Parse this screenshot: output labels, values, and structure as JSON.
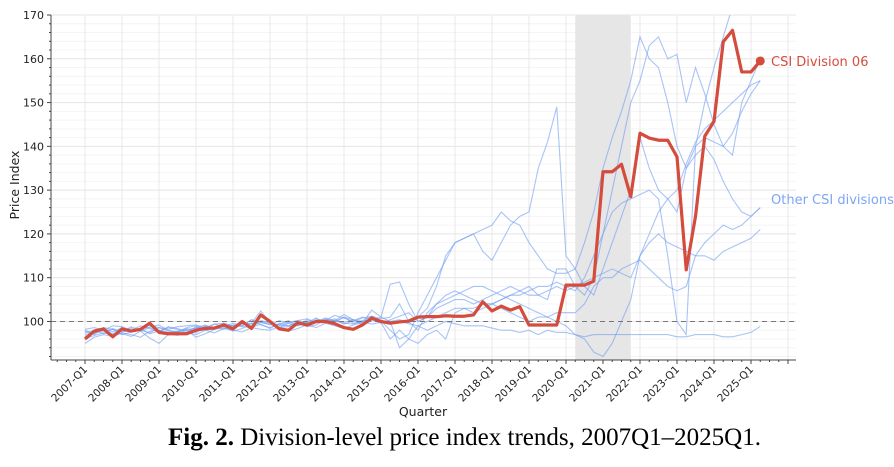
{
  "caption": {
    "label": "Fig. 2.",
    "text": " Division-level price index trends, 2007Q1–2025Q1."
  },
  "chart_data": {
    "type": "line",
    "title": "",
    "xlabel": "Quarter",
    "ylabel": "Price Index",
    "x_first": "2007-Q1",
    "x_last": "2025-Q2",
    "x_tick_labels": [
      "2007-Q1",
      "2008-Q1",
      "2009-Q1",
      "2010-Q1",
      "2011-Q1",
      "2012-Q1",
      "2013-Q1",
      "2014-Q1",
      "2015-Q1",
      "2016-Q1",
      "2017-Q1",
      "2018-Q1",
      "2019-Q1",
      "2020-Q1",
      "2021-Q1",
      "2022-Q1",
      "2023-Q1",
      "2024-Q1",
      "2025-Q1"
    ],
    "y_ticks": [
      100,
      110,
      120,
      130,
      140,
      150,
      160,
      170
    ],
    "ylim": [
      91.2,
      170
    ],
    "grid": true,
    "reference_line": {
      "y": 100,
      "style": "dashed"
    },
    "shaded_region": {
      "from": "2020-Q2",
      "to": "2021-Q4",
      "color": "#e6e6e6"
    },
    "colors": {
      "highlight": "#d44c3c",
      "others": "#6f9cf2",
      "others_label": "#7ea6f2"
    },
    "highlight": {
      "name": "CSI Division 06",
      "values": [
        96.0,
        97.8,
        98.3,
        96.5,
        98.3,
        97.8,
        98.2,
        99.6,
        97.5,
        97.2,
        97.2,
        97.2,
        98.0,
        98.4,
        98.5,
        99.2,
        98.3,
        100.0,
        98.4,
        101.5,
        100.0,
        98.3,
        98.0,
        99.7,
        99.2,
        100.0,
        100.0,
        99.5,
        98.6,
        98.2,
        99.2,
        100.8,
        100.0,
        99.6,
        99.9,
        100.1,
        101.0,
        101.1,
        101.1,
        101.3,
        101.2,
        101.2,
        101.5,
        104.5,
        102.4,
        103.5,
        102.6,
        103.4,
        99.2,
        99.2,
        99.2,
        99.2,
        108.3,
        108.3,
        108.3,
        109.2,
        134.2,
        134.2,
        135.9,
        128.5,
        143.0,
        141.9,
        141.4,
        141.4,
        137.6,
        111.8,
        124.0,
        142.3,
        145.7,
        163.9,
        166.5,
        157.0,
        157.0,
        159.5
      ]
    },
    "others": {
      "name": "Other CSI divisions",
      "lines": [
        [
          97.0,
          97.6,
          98.0,
          97.2,
          98.1,
          98.5,
          97.8,
          98.6,
          98.0,
          97.5,
          97.8,
          98.2,
          98.4,
          98.9,
          98.7,
          99.2,
          99.0,
          99.6,
          99.4,
          100.2,
          99.8,
          99.1,
          99.0,
          99.6,
          99.8,
          100.2,
          100.4,
          100.1,
          99.6,
          99.4,
          100.0,
          100.6,
          100.1,
          98.0,
          96.0,
          97.0,
          102,
          106,
          110,
          114,
          118,
          119,
          120,
          121,
          122,
          125,
          123,
          122,
          118,
          115,
          112,
          111,
          111,
          112,
          118,
          125,
          135,
          142,
          148,
          155,
          165,
          160,
          158,
          150,
          140,
          135,
          140,
          150,
          158,
          165,
          172,
          175,
          172,
          178
        ],
        [
          98.0,
          97.2,
          98.6,
          98.2,
          97.6,
          98.0,
          99.0,
          98.4,
          97.6,
          98.8,
          98.4,
          97.8,
          98.6,
          99.2,
          98.2,
          99.6,
          98.8,
          99.0,
          100.4,
          99.2,
          98.6,
          99.4,
          100.2,
          99.0,
          99.8,
          100.8,
          99.6,
          100.2,
          101.6,
          100.4,
          99.2,
          100.2,
          101.0,
          100.0,
          100.4,
          99.8,
          101,
          103,
          108,
          115,
          118,
          119,
          120,
          116,
          114,
          118,
          122,
          124,
          125,
          135,
          141,
          149,
          115,
          112,
          108,
          106,
          112,
          118,
          124,
          130,
          142,
          135,
          130,
          128,
          125,
          135,
          138,
          140,
          137,
          132,
          128,
          125,
          124,
          126
        ],
        [
          96.0,
          96.8,
          97.4,
          97.0,
          97.2,
          96.6,
          97.8,
          96.2,
          95.0,
          97.0,
          97.6,
          98.0,
          96.4,
          97.2,
          98.2,
          98.6,
          97.8,
          98.4,
          99.6,
          102.4,
          99.8,
          98.6,
          98.8,
          99.4,
          99.0,
          100.6,
          100.0,
          99.8,
          101.0,
          100.4,
          99.6,
          102.6,
          101.0,
          108.5,
          109.0,
          104.0,
          100,
          101,
          104,
          106,
          107,
          106,
          105,
          104,
          104,
          105,
          106,
          107,
          108,
          106,
          105,
          112,
          112,
          108,
          106,
          110,
          120,
          130,
          140,
          150,
          155,
          163,
          165,
          160,
          161,
          150,
          158,
          152,
          145,
          140,
          138,
          150,
          155,
          160
        ],
        [
          97.4,
          98.0,
          97.2,
          98.4,
          97.6,
          98.8,
          98.0,
          97.4,
          98.6,
          97.8,
          97.6,
          98.4,
          97.4,
          99.0,
          98.6,
          98.2,
          99.2,
          98.8,
          98.6,
          99.4,
          98.4,
          99.6,
          99.0,
          100.0,
          98.8,
          99.2,
          100.6,
          100.0,
          101.0,
          99.6,
          100.2,
          101.2,
          99.8,
          96.0,
          98.0,
          96.0,
          99,
          100,
          101,
          102,
          103,
          103,
          102,
          103,
          104,
          105,
          106,
          106,
          107,
          108,
          108,
          109,
          108,
          107,
          110,
          115,
          120,
          125,
          127,
          128,
          129,
          130,
          128,
          115,
          100,
          97,
          140,
          142,
          141,
          140,
          143,
          148,
          152,
          155
        ],
        [
          98.2,
          98.6,
          98.0,
          99.0,
          98.8,
          98.0,
          98.4,
          99.2,
          98.6,
          98.2,
          98.8,
          99.0,
          99.2,
          98.6,
          99.4,
          99.6,
          99.0,
          99.8,
          99.4,
          100.0,
          99.6,
          99.2,
          99.8,
          100.2,
          99.6,
          100.0,
          100.8,
          100.2,
          99.8,
          100.4,
          100.0,
          100.6,
          100.2,
          100.0,
          100.0,
          99.5,
          99,
          98,
          99,
          100,
          99.5,
          99,
          99,
          99,
          98.5,
          98,
          98,
          97.5,
          98,
          97,
          98,
          97.5,
          97.5,
          97,
          96.5,
          97,
          97,
          97,
          97,
          97,
          97,
          97,
          97,
          97,
          96.5,
          96.5,
          97,
          97,
          97,
          96.5,
          96.5,
          97,
          97.5,
          98.9
        ],
        [
          95.0,
          96.4,
          97.0,
          96.6,
          97.4,
          97.0,
          96.4,
          97.8,
          98.0,
          97.2,
          96.8,
          97.6,
          97.0,
          98.0,
          97.4,
          98.4,
          98.0,
          97.6,
          98.6,
          98.2,
          98.0,
          98.8,
          97.8,
          98.4,
          99.2,
          98.6,
          99.6,
          99.0,
          98.4,
          99.2,
          99.8,
          99.4,
          99.8,
          100.0,
          94.0,
          96.0,
          95,
          97,
          98,
          96,
          102,
          103,
          103,
          104,
          104,
          103,
          102,
          101,
          100,
          101,
          101,
          102,
          102,
          102,
          104,
          108,
          110,
          110,
          112,
          113,
          114,
          112,
          110,
          108,
          107,
          108,
          115,
          118,
          120,
          122,
          121,
          122,
          124,
          126
        ],
        [
          97.8,
          97.0,
          98.4,
          97.6,
          98.6,
          97.8,
          98.2,
          98.8,
          99.2,
          98.0,
          97.6,
          98.6,
          99.0,
          98.2,
          99.4,
          98.8,
          99.6,
          99.0,
          100.4,
          99.8,
          99.4,
          98.6,
          99.6,
          100.2,
          100.6,
          99.8,
          100.2,
          101.4,
          100.8,
          100.0,
          100.8,
          101.2,
          100.6,
          101.0,
          104.0,
          100.0,
          98,
          102,
          104,
          105,
          106,
          107,
          108,
          108,
          107,
          106,
          105,
          104,
          103,
          102,
          101,
          100,
          99,
          97,
          96,
          93,
          92,
          95,
          100,
          105,
          115,
          120,
          125,
          128,
          130,
          136,
          141,
          144,
          146,
          148,
          150,
          152,
          154,
          155
        ],
        [
          96.6,
          97.4,
          97.8,
          98.2,
          97.0,
          97.6,
          98.4,
          97.2,
          97.8,
          98.6,
          98.2,
          97.4,
          98.8,
          98.0,
          98.4,
          99.0,
          98.6,
          99.4,
          99.0,
          99.8,
          99.2,
          100.2,
          99.6,
          99.0,
          100.4,
          99.8,
          100.0,
          100.6,
          99.4,
          100.2,
          101.0,
          100.4,
          99.6,
          100.4,
          101.2,
          102.0,
          100,
          101,
          103,
          104,
          105,
          105,
          104,
          105,
          106,
          107,
          108,
          107,
          106,
          106,
          107,
          108,
          107,
          108,
          109,
          110,
          111,
          112,
          111,
          110,
          115,
          118,
          120,
          118,
          117,
          116,
          115,
          115,
          114,
          116,
          117,
          118,
          119,
          121
        ]
      ]
    }
  }
}
